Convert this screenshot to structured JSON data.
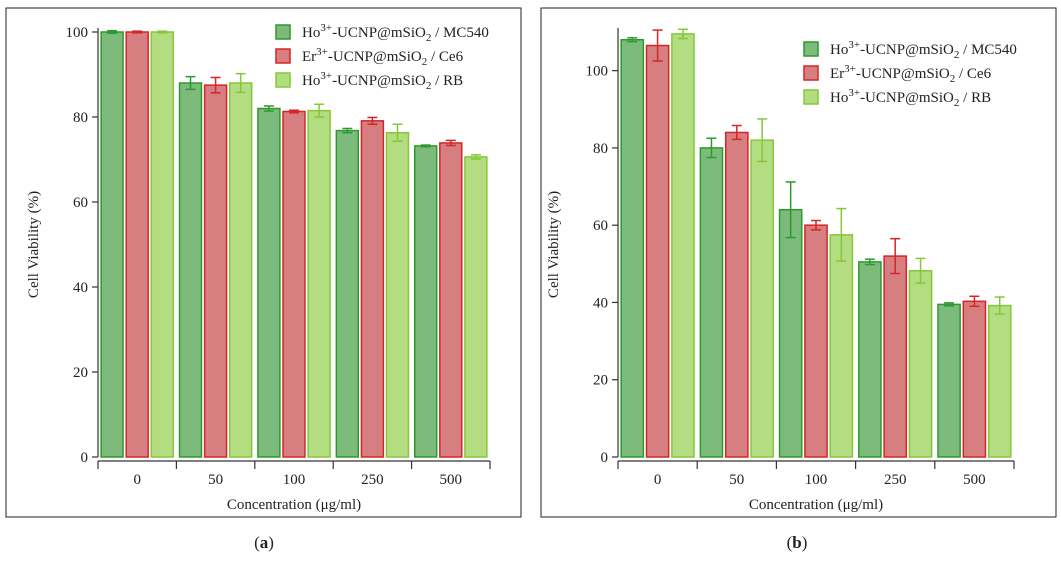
{
  "colors": {
    "series_fill": [
      "#7cbb7c",
      "#d77e80",
      "#b4dc80"
    ],
    "series_stroke": [
      "#2e9a2e",
      "#d42626",
      "#84c83a"
    ],
    "axis": "#333333",
    "frame": "#222222"
  },
  "chart_data": [
    {
      "type": "bar",
      "panel": "a",
      "panel_label": "(a)",
      "panel_letter": "a",
      "categories": [
        "0",
        "50",
        "100",
        "250",
        "500"
      ],
      "series": [
        {
          "name": "Ho3+-UCNP@mSiO2 / MC540",
          "legend_parts": {
            "pre": "Ho",
            "sup": "3+",
            "mid": "-UCNP@mSiO",
            "sub": "2",
            "post": " / MC540"
          },
          "values": [
            100,
            88,
            82,
            76.8,
            73.2
          ],
          "errors": [
            0.3,
            1.5,
            0.6,
            0.5,
            0.2
          ]
        },
        {
          "name": "Er3+-UCNP@mSiO2 / Ce6",
          "legend_parts": {
            "pre": "Er",
            "sup": "3+",
            "mid": "-UCNP@mSiO",
            "sub": "2",
            "post": " / Ce6"
          },
          "values": [
            100,
            87.5,
            81.3,
            79.1,
            73.9
          ],
          "errors": [
            0.2,
            1.8,
            0.3,
            0.8,
            0.6
          ]
        },
        {
          "name": "Ho3+-UCNP@mSiO2 / RB",
          "legend_parts": {
            "pre": "Ho",
            "sup": "3+",
            "mid": "-UCNP@mSiO",
            "sub": "2",
            "post": " / RB"
          },
          "values": [
            100,
            88,
            81.5,
            76.3,
            70.6
          ],
          "errors": [
            0.2,
            2.2,
            1.5,
            2,
            0.5
          ]
        }
      ],
      "xlabel": "Concentration (μg/ml)",
      "ylabel": "Cell Viability (%)",
      "ylim": [
        0,
        100
      ],
      "yticks": [
        "0",
        "20",
        "40",
        "60",
        "80",
        "100"
      ],
      "legend_position": "top-right"
    },
    {
      "type": "bar",
      "panel": "b",
      "panel_label": "(b)",
      "panel_letter": "b",
      "categories": [
        "0",
        "50",
        "100",
        "250",
        "500"
      ],
      "series": [
        {
          "name": "Ho3+-UCNP@mSiO2 / MC540",
          "legend_parts": {
            "pre": "Ho",
            "sup": "3+",
            "mid": "-UCNP@mSiO",
            "sub": "2",
            "post": " / MC540"
          },
          "values": [
            108,
            80,
            64,
            50.5,
            39.5
          ],
          "errors": [
            0.5,
            2.5,
            7.2,
            0.7,
            0.4
          ]
        },
        {
          "name": "Er3+-UCNP@mSiO2 / Ce6",
          "legend_parts": {
            "pre": "Er",
            "sup": "3+",
            "mid": "-UCNP@mSiO",
            "sub": "2",
            "post": " / Ce6"
          },
          "values": [
            106.5,
            84,
            60,
            52,
            40.3
          ],
          "errors": [
            4,
            1.8,
            1.2,
            4.5,
            1.3
          ]
        },
        {
          "name": "Ho3+-UCNP@mSiO2 / RB",
          "legend_parts": {
            "pre": "Ho",
            "sup": "3+",
            "mid": "-UCNP@mSiO",
            "sub": "2",
            "post": " / RB"
          },
          "values": [
            109.5,
            82,
            57.5,
            48.2,
            39.2
          ],
          "errors": [
            1.2,
            5.5,
            6.8,
            3.2,
            2.2
          ]
        }
      ],
      "xlabel": "Concentration (μg/ml)",
      "ylabel": "Cell Viability (%)",
      "ylim": [
        0,
        110
      ],
      "yticks": [
        "0",
        "20",
        "40",
        "60",
        "80",
        "100"
      ],
      "legend_position": "top-right"
    }
  ]
}
